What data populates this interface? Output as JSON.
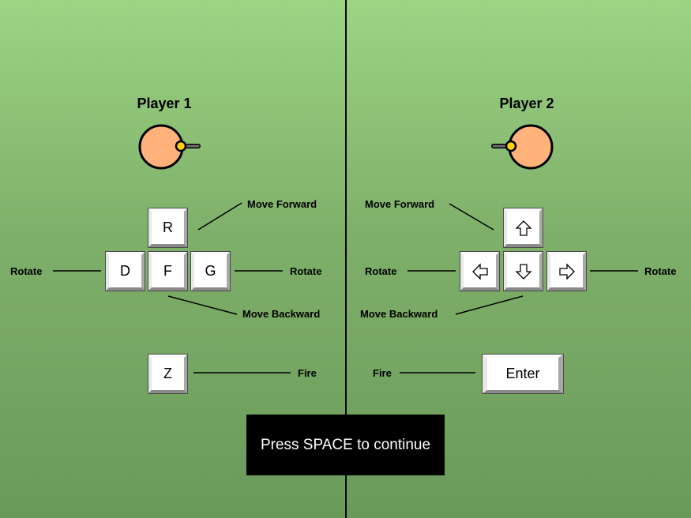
{
  "player1": {
    "title": "Player 1",
    "keys": {
      "forward": "R",
      "left": "D",
      "back": "F",
      "right": "G",
      "fire": "Z"
    },
    "labels": {
      "forward": "Move Forward",
      "rotate_left": "Rotate",
      "rotate_right": "Rotate",
      "backward": "Move Backward",
      "fire": "Fire"
    }
  },
  "player2": {
    "title": "Player 2",
    "keys": {
      "forward_icon": "arrow-up-icon",
      "left_icon": "arrow-left-icon",
      "back_icon": "arrow-down-icon",
      "right_icon": "arrow-right-icon",
      "fire": "Enter"
    },
    "labels": {
      "forward": "Move Forward",
      "rotate_left": "Rotate",
      "rotate_right": "Rotate",
      "backward": "Move Backward",
      "fire": "Fire"
    }
  },
  "continue_button": {
    "label": "Press SPACE to continue"
  },
  "colors": {
    "background_top": "#9cd484",
    "background_bottom": "#6a9a5a",
    "player_body": "#ffb27a",
    "player_gun": "#ffd200",
    "button": "#000000"
  }
}
